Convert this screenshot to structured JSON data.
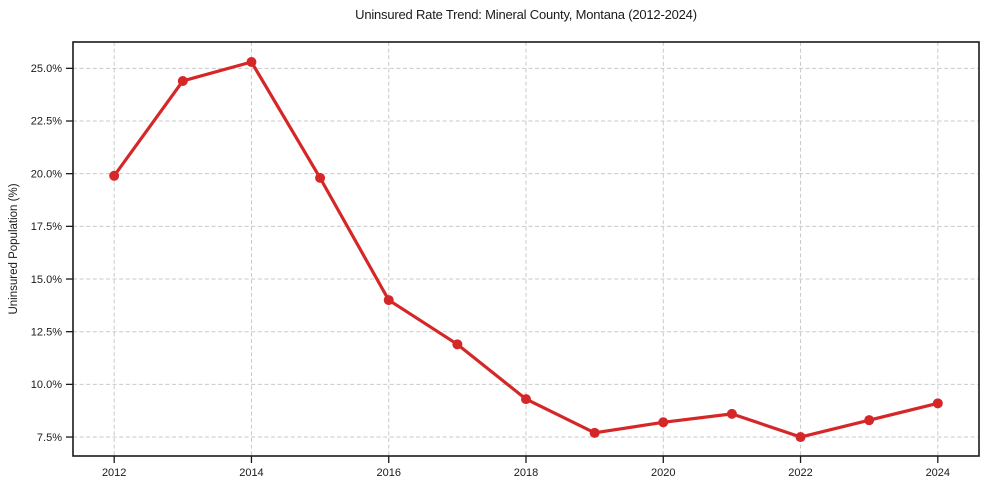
{
  "figure": {
    "background": "#ffffff"
  },
  "chart_data": {
    "type": "line",
    "title": "Uninsured Rate Trend: Mineral County, Montana (2012-2024)",
    "xlabel": "",
    "ylabel": "Uninsured Population (%)",
    "x": [
      2012,
      2013,
      2014,
      2015,
      2016,
      2017,
      2018,
      2019,
      2020,
      2021,
      2022,
      2023,
      2024
    ],
    "values": [
      19.9,
      24.4,
      25.3,
      19.8,
      14.0,
      11.9,
      9.3,
      7.7,
      8.2,
      8.6,
      7.5,
      8.3,
      9.1
    ],
    "xlim": [
      2011.4,
      2024.6
    ],
    "ylim": [
      6.6,
      26.25
    ],
    "xticks": [
      {
        "value": 2012,
        "label": "2012"
      },
      {
        "value": 2014,
        "label": "2014"
      },
      {
        "value": 2016,
        "label": "2016"
      },
      {
        "value": 2018,
        "label": "2018"
      },
      {
        "value": 2020,
        "label": "2020"
      },
      {
        "value": 2022,
        "label": "2022"
      },
      {
        "value": 2024,
        "label": "2024"
      }
    ],
    "yticks": [
      {
        "value": 7.5,
        "label": "7.5%"
      },
      {
        "value": 10.0,
        "label": "10.0%"
      },
      {
        "value": 12.5,
        "label": "12.5%"
      },
      {
        "value": 15.0,
        "label": "15.0%"
      },
      {
        "value": 17.5,
        "label": "17.5%"
      },
      {
        "value": 20.0,
        "label": "20.0%"
      },
      {
        "value": 22.5,
        "label": "22.5%"
      },
      {
        "value": 25.0,
        "label": "25.0%"
      }
    ],
    "grid": true,
    "grid_style": "dashed",
    "legend_position": "none",
    "line_color": "#d62728",
    "marker": "circle",
    "grid_color": "#c9c9c9",
    "axis_color": "#1a1a1a",
    "text_color": "#1a1a1a"
  }
}
